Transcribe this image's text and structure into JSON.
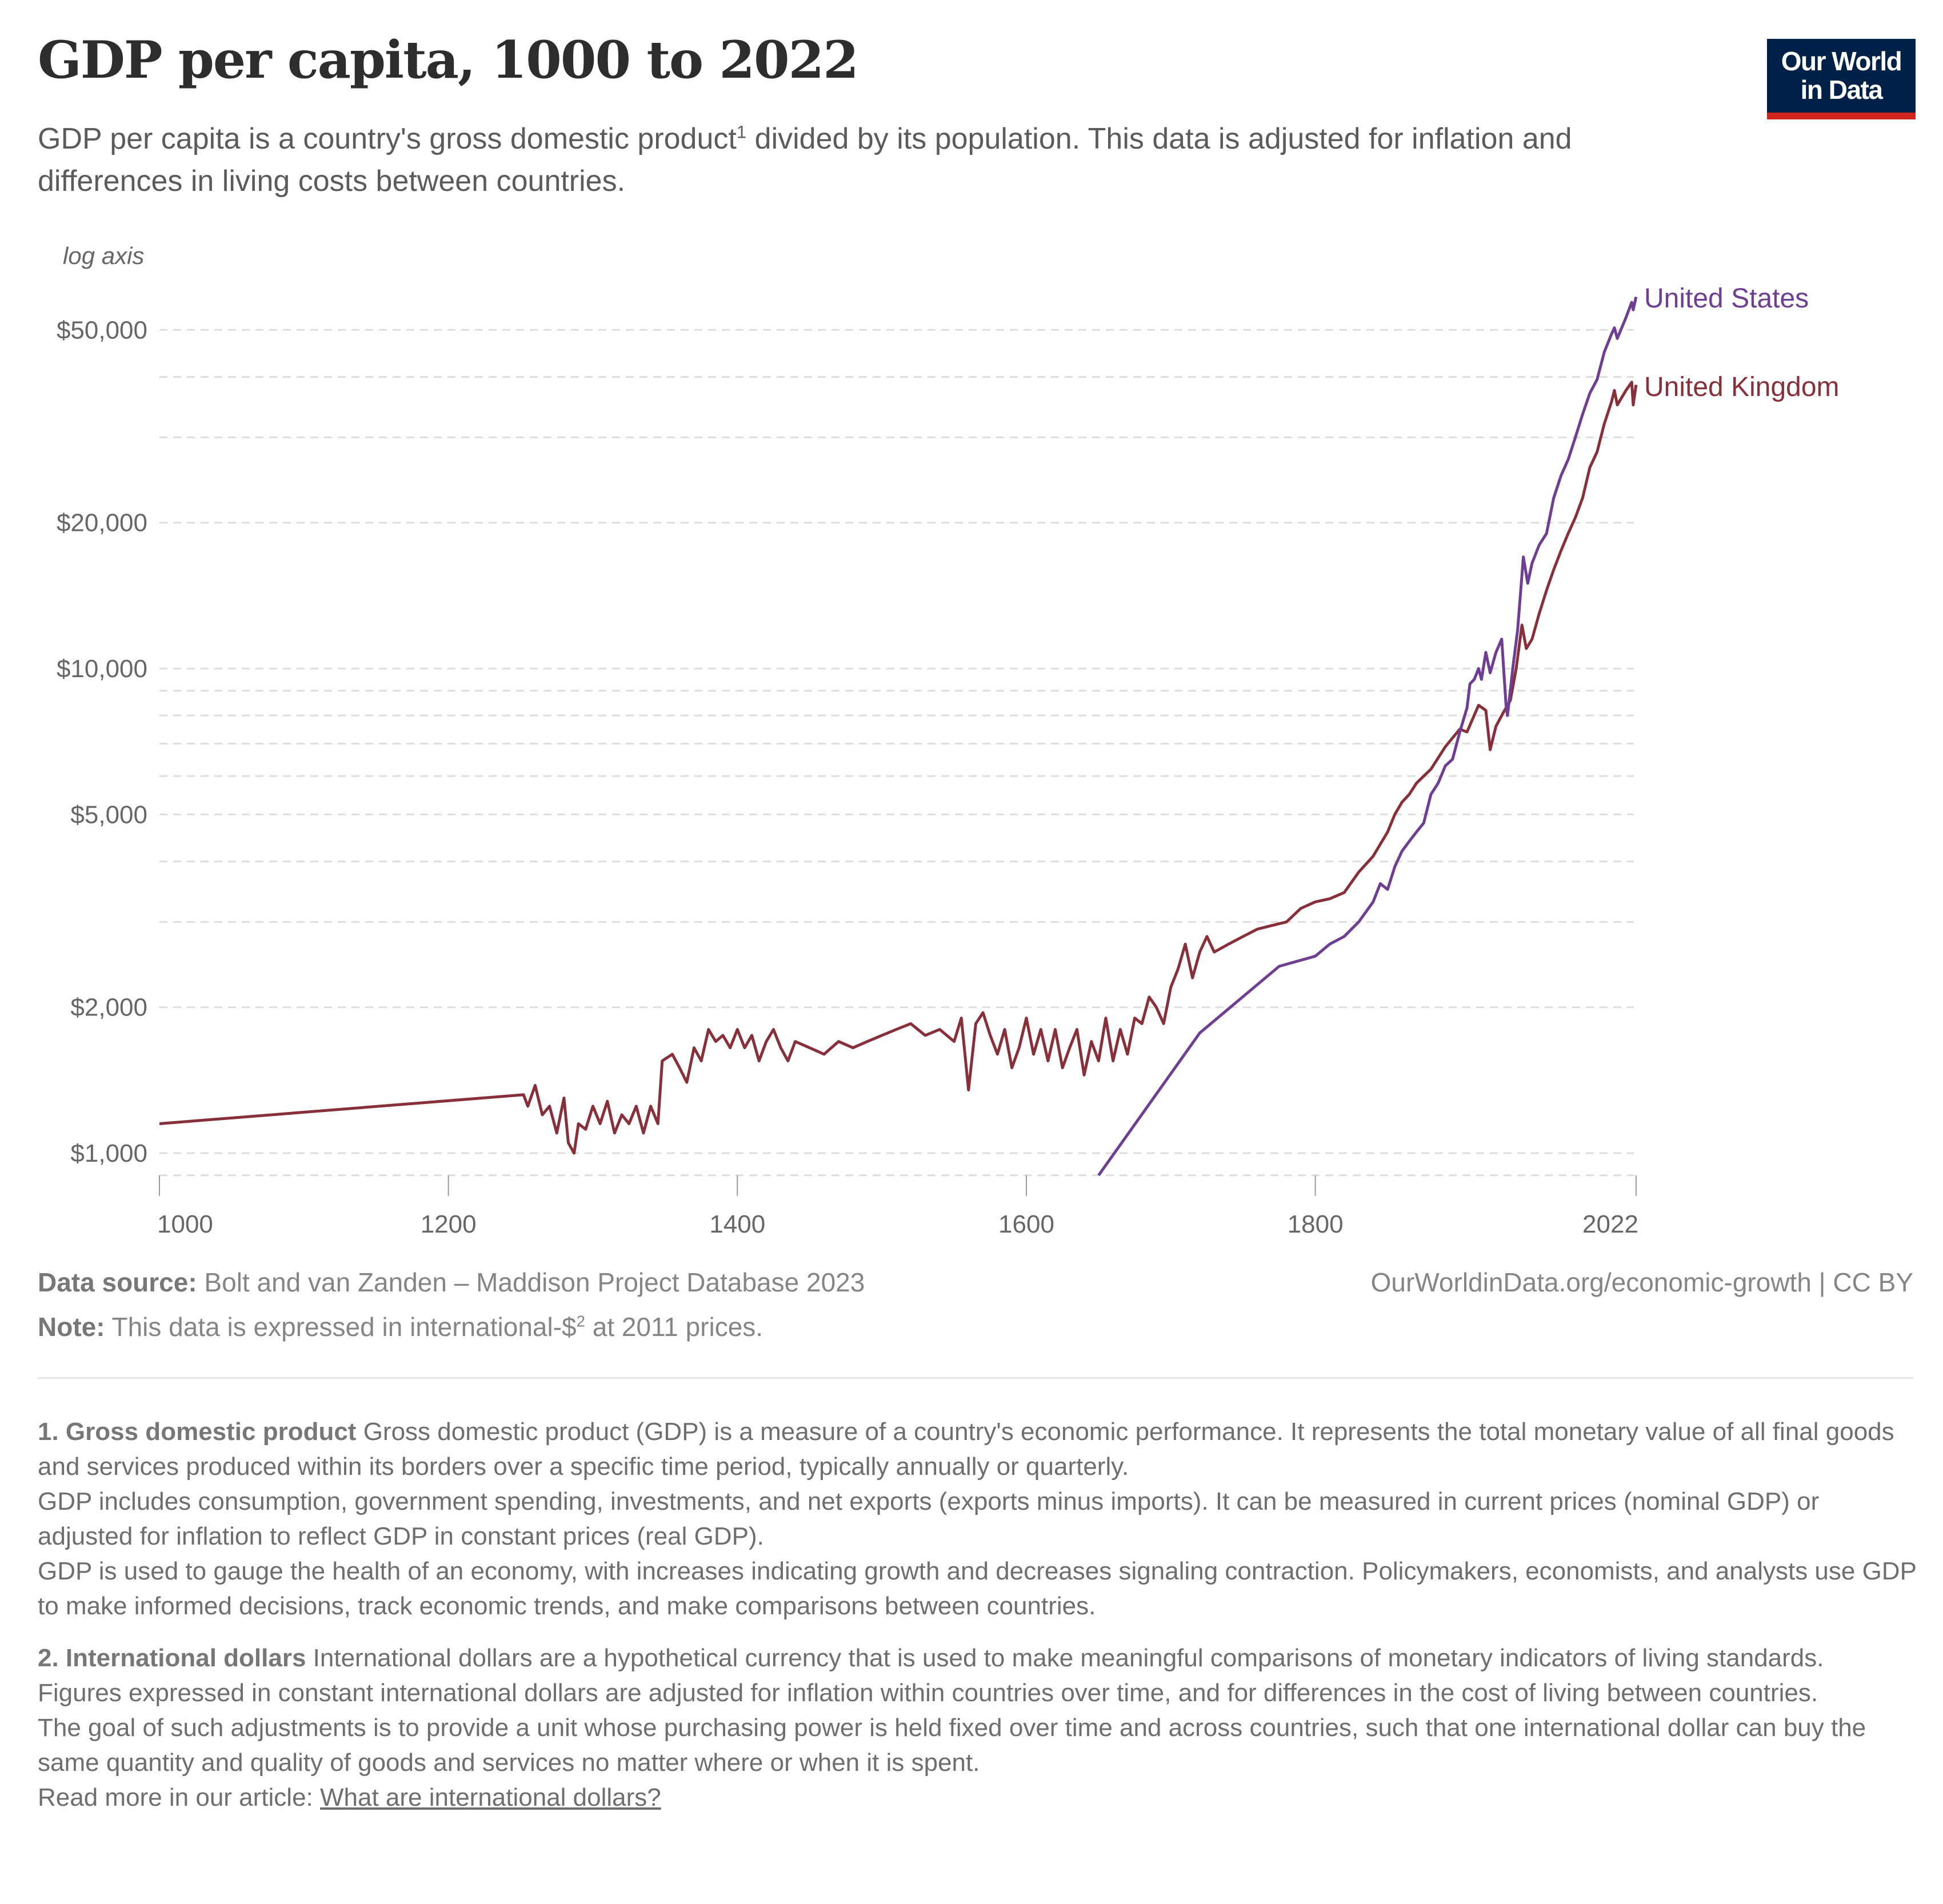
{
  "header": {
    "title": "GDP per capita, 1000 to 2022",
    "subtitle_part1": "GDP per capita is a country's gross domestic product",
    "subtitle_sup": "1",
    "subtitle_part2": " divided by its population. This data is adjusted for inflation and differences in living costs between countries.",
    "logo_line1": "Our World",
    "logo_line2": "in Data"
  },
  "chart_data": {
    "type": "line",
    "title": "GDP per capita, 1000 to 2022",
    "axis_note": "log axis",
    "yscale": "log",
    "ylim": [
      900,
      60000
    ],
    "xlim": [
      1000,
      2022
    ],
    "yticks": [
      1000,
      2000,
      5000,
      10000,
      20000,
      50000
    ],
    "ytick_labels": [
      "$1,000",
      "$2,000",
      "$5,000",
      "$10,000",
      "$20,000",
      "$50,000"
    ],
    "ygrid_minor": [
      900,
      3000,
      4000,
      6000,
      7000,
      8000,
      9000,
      30000,
      40000
    ],
    "xticks": [
      1000,
      1200,
      1400,
      1600,
      1800,
      2022
    ],
    "xtick_labels": [
      "1000",
      "1200",
      "1400",
      "1600",
      "1800",
      "2022"
    ],
    "colors": {
      "United States": "#6d3e91",
      "United Kingdom": "#883039",
      "grid": "#dddddd"
    },
    "series": [
      {
        "name": "United Kingdom",
        "x": [
          1000,
          1252,
          1255,
          1260,
          1265,
          1270,
          1275,
          1280,
          1283,
          1287,
          1290,
          1295,
          1300,
          1305,
          1310,
          1315,
          1320,
          1325,
          1330,
          1335,
          1340,
          1345,
          1348,
          1355,
          1360,
          1365,
          1370,
          1375,
          1380,
          1385,
          1390,
          1395,
          1400,
          1405,
          1410,
          1415,
          1420,
          1425,
          1430,
          1435,
          1440,
          1450,
          1460,
          1470,
          1480,
          1490,
          1500,
          1510,
          1520,
          1530,
          1540,
          1550,
          1555,
          1560,
          1565,
          1570,
          1575,
          1580,
          1585,
          1590,
          1595,
          1600,
          1605,
          1610,
          1615,
          1620,
          1625,
          1630,
          1635,
          1640,
          1645,
          1650,
          1655,
          1660,
          1665,
          1670,
          1675,
          1680,
          1685,
          1690,
          1695,
          1700,
          1705,
          1710,
          1715,
          1720,
          1725,
          1730,
          1740,
          1750,
          1760,
          1770,
          1780,
          1790,
          1800,
          1810,
          1820,
          1830,
          1840,
          1850,
          1855,
          1860,
          1865,
          1870,
          1880,
          1890,
          1900,
          1905,
          1913,
          1918,
          1921,
          1925,
          1930,
          1935,
          1939,
          1943,
          1946,
          1950,
          1955,
          1960,
          1965,
          1970,
          1975,
          1980,
          1985,
          1990,
          1995,
          2000,
          2005,
          2007,
          2009,
          2015,
          2019,
          2020,
          2022
        ],
        "values": [
          1150,
          1320,
          1250,
          1380,
          1200,
          1250,
          1100,
          1300,
          1050,
          1000,
          1150,
          1120,
          1250,
          1150,
          1280,
          1100,
          1200,
          1150,
          1250,
          1100,
          1250,
          1150,
          1550,
          1600,
          1500,
          1400,
          1650,
          1550,
          1800,
          1700,
          1750,
          1650,
          1800,
          1650,
          1750,
          1550,
          1700,
          1800,
          1650,
          1550,
          1700,
          1650,
          1600,
          1700,
          1650,
          1700,
          1750,
          1800,
          1850,
          1750,
          1800,
          1700,
          1900,
          1350,
          1850,
          1950,
          1750,
          1600,
          1800,
          1500,
          1650,
          1900,
          1600,
          1800,
          1550,
          1800,
          1500,
          1650,
          1800,
          1450,
          1700,
          1550,
          1900,
          1550,
          1800,
          1600,
          1900,
          1850,
          2100,
          2000,
          1850,
          2200,
          2400,
          2700,
          2300,
          2600,
          2800,
          2600,
          2700,
          2800,
          2900,
          2950,
          3000,
          3200,
          3300,
          3350,
          3450,
          3800,
          4100,
          4600,
          5000,
          5300,
          5500,
          5800,
          6200,
          6900,
          7500,
          7400,
          8400,
          8200,
          6800,
          7600,
          8100,
          8600,
          10000,
          12300,
          11000,
          11500,
          13000,
          14500,
          16000,
          17500,
          19000,
          20500,
          22500,
          26000,
          28000,
          32000,
          35500,
          37500,
          35000,
          37500,
          39000,
          35000,
          38500
        ]
      },
      {
        "name": "United States",
        "x": [
          1650,
          1720,
          1775,
          1800,
          1810,
          1820,
          1830,
          1840,
          1845,
          1850,
          1855,
          1860,
          1865,
          1870,
          1875,
          1880,
          1885,
          1890,
          1895,
          1900,
          1905,
          1907,
          1910,
          1913,
          1915,
          1918,
          1921,
          1925,
          1929,
          1932,
          1933,
          1937,
          1940,
          1944,
          1947,
          1950,
          1955,
          1960,
          1965,
          1970,
          1975,
          1980,
          1985,
          1990,
          1995,
          2000,
          2005,
          2007,
          2009,
          2015,
          2019,
          2020,
          2022
        ],
        "values": [
          900,
          1770,
          2430,
          2550,
          2700,
          2800,
          3000,
          3300,
          3600,
          3500,
          3900,
          4200,
          4400,
          4600,
          4800,
          5500,
          5800,
          6300,
          6500,
          7400,
          8300,
          9300,
          9500,
          10000,
          9500,
          10800,
          9800,
          10800,
          11500,
          8400,
          8000,
          10200,
          12000,
          17000,
          15000,
          16500,
          18000,
          19000,
          22500,
          25000,
          27000,
          30000,
          33500,
          37000,
          39500,
          45000,
          49000,
          50500,
          48000,
          53000,
          57000,
          55000,
          58500
        ]
      }
    ]
  },
  "footer": {
    "source_label": "Data source:",
    "source_text": " Bolt and van Zanden – Maddison Project Database 2023",
    "note_label": "Note:",
    "note_text_1": " This data is expressed in international-$",
    "note_sup": "2",
    "note_text_2": " at 2011 prices.",
    "url": "OurWorldinData.org/economic-growth",
    "license": " | CC BY"
  },
  "footnotes": {
    "n1_title": "1. Gross domestic product",
    "n1_p1": " Gross domestic product (GDP) is a measure of a country's economic performance. It represents the total monetary value of all final goods and services produced within its borders over a specific time period, typically annually or quarterly.",
    "n1_p2": "GDP includes consumption, government spending, investments, and net exports (exports minus imports). It can be measured in current prices (nominal GDP) or adjusted for inflation to reflect GDP in constant prices (real GDP).",
    "n1_p3": "GDP is used to gauge the health of an economy, with increases indicating growth and decreases signaling contraction. Policymakers, economists, and analysts use GDP to make informed decisions, track economic trends, and make comparisons between countries.",
    "n2_title": "2. International dollars",
    "n2_p1": " International dollars are a hypothetical currency that is used to make meaningful comparisons of monetary indicators of living standards.",
    "n2_p2": "Figures expressed in constant international dollars are adjusted for inflation within countries over time, and for differences in the cost of living between countries.",
    "n2_p3": "The goal of such adjustments is to provide a unit whose purchasing power is held fixed over time and across countries, such that one international dollar can buy the same quantity and quality of goods and services no matter where or when it is spent.",
    "read_more": "Read more in our article: ",
    "link": "What are international dollars?"
  }
}
